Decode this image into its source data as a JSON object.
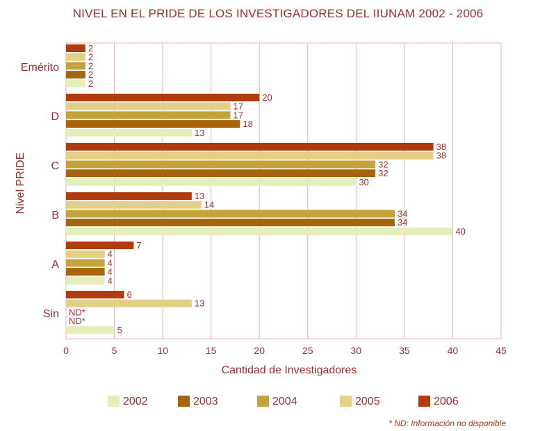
{
  "title": "NIVEL EN EL PRIDE DE LOS INVESTIGADORES DEL IIUNAM 2002 - 2006",
  "footnote": "* ND: Información no disponible",
  "colors": {
    "title": "#9c2b2b",
    "axis_text": "#9c2b2b",
    "grid": "#e6b0b0",
    "series": {
      "2002": "#e5eeb8",
      "2003": "#a86408",
      "2004": "#c4a23c",
      "2005": "#e3cf86",
      "2006": "#b03c0c"
    }
  },
  "chart_data": {
    "type": "bar",
    "orientation": "horizontal",
    "title": "NIVEL EN EL PRIDE DE LOS INVESTIGADORES DEL IIUNAM 2002 - 2006",
    "xlabel": "Cantidad de Investigadores",
    "ylabel": "Nivel PRIDE",
    "xlim": [
      0,
      45
    ],
    "xticks": [
      "0",
      "5",
      "10",
      "15",
      "20",
      "25",
      "30",
      "35",
      "40",
      "45"
    ],
    "grid": true,
    "legend_position": "bottom",
    "categories": [
      "Emérito",
      "D",
      "C",
      "B",
      "A",
      "Sin"
    ],
    "series": [
      {
        "name": "2006",
        "values": [
          2,
          20,
          38,
          13,
          7,
          6
        ],
        "labels": [
          "2",
          "20",
          "38",
          "13",
          "7",
          "6"
        ]
      },
      {
        "name": "2005",
        "values": [
          2,
          17,
          38,
          14,
          4,
          13
        ],
        "labels": [
          "2",
          "17",
          "38",
          "14",
          "4",
          "13"
        ]
      },
      {
        "name": "2004",
        "values": [
          2,
          17,
          32,
          34,
          4,
          null
        ],
        "labels": [
          "2",
          "17",
          "32",
          "34",
          "4",
          "ND*"
        ]
      },
      {
        "name": "2003",
        "values": [
          2,
          18,
          32,
          34,
          4,
          null
        ],
        "labels": [
          "2",
          "18",
          "32",
          "34",
          "4",
          "ND*"
        ]
      },
      {
        "name": "2002",
        "values": [
          2,
          13,
          30,
          40,
          4,
          5
        ],
        "labels": [
          "2",
          "13",
          "30",
          "40",
          "4",
          "5"
        ]
      }
    ],
    "legend_order": [
      "2002",
      "2003",
      "2004",
      "2005",
      "2006"
    ]
  }
}
